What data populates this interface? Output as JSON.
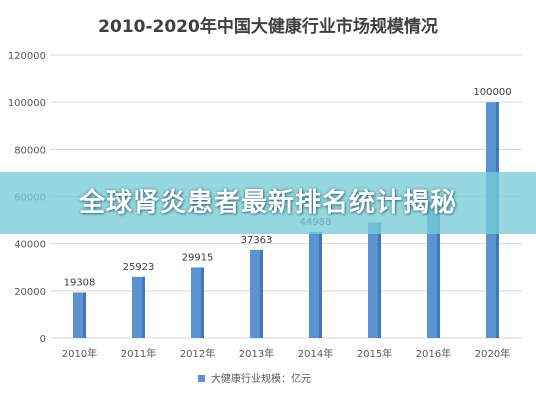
{
  "chart_data": {
    "type": "bar",
    "title": "2010-2020年中国大健康行业市场规模情况",
    "categories": [
      "2010年",
      "2011年",
      "2012年",
      "2013年",
      "2014年",
      "2015年",
      "2016年",
      "2020年"
    ],
    "series": [
      {
        "name": "大健康行业规模：亿元",
        "values": [
          19308,
          25923,
          29915,
          37363,
          44988,
          49000,
          58000,
          100000
        ],
        "data_labels": [
          "19308",
          "25923",
          "29915",
          "37363",
          "44988",
          "",
          "",
          "100000"
        ]
      }
    ],
    "ylim": [
      0,
      120000
    ],
    "yticks": [
      0,
      20000,
      40000,
      60000,
      80000,
      100000,
      120000
    ],
    "grid": true,
    "legend": "bottom",
    "colors": {
      "bar": "#5b93d0",
      "bar_dark": "#3f78bd",
      "grid": "#d9d9d9",
      "axis_text": "#595959",
      "title": "#404040",
      "banner": "#78cdd7"
    }
  },
  "overlay": {
    "banner_text": "全球肾炎患者最新排名统计揭秘"
  }
}
